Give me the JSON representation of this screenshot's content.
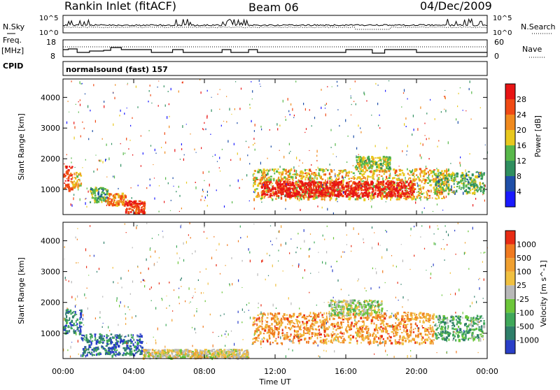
{
  "header": {
    "station": "Rankin Inlet (fitACF)",
    "beam": "Beam 06",
    "date": "04/Dec/2009"
  },
  "noise_panel": {
    "left_label": "N.Sky",
    "right_label": "N.Search",
    "y_ticks_left": [
      "10^5",
      "10^0"
    ],
    "y_ticks_right": [
      "10^5",
      "10^0"
    ]
  },
  "freq_panel": {
    "left_label_1": "Freq.",
    "left_label_2": "[MHz]",
    "y_ticks_left": [
      "18",
      "8"
    ],
    "right_label": "Nave",
    "y_ticks_right": [
      "60",
      "0"
    ]
  },
  "cpid": {
    "label": "CPID",
    "text": "normalsound (fast) 157"
  },
  "chart_data": [
    {
      "type": "heatmap",
      "name": "power",
      "ylabel": "Slant Range [km]",
      "ylim": [
        180,
        4600
      ],
      "y_ticks": [
        1000,
        2000,
        3000,
        4000
      ],
      "colorbar": {
        "label": "Power [dB]",
        "ticks": [
          4,
          8,
          12,
          16,
          20,
          24,
          28
        ],
        "colors": [
          "#1a1aff",
          "#1f4fa8",
          "#2f8f5f",
          "#58b84a",
          "#e8c81e",
          "#f08a1e",
          "#f04a14",
          "#e81414"
        ]
      },
      "regions": [
        {
          "t": [
            0.0,
            0.5
          ],
          "r": [
            1000,
            1800
          ],
          "level": 0.85
        },
        {
          "t": [
            0.5,
            1.0
          ],
          "r": [
            1100,
            1600
          ],
          "level": 0.55
        },
        {
          "t": [
            1.5,
            2.5
          ],
          "r": [
            600,
            1100
          ],
          "level": 0.4
        },
        {
          "t": [
            2.5,
            3.5
          ],
          "r": [
            500,
            900
          ],
          "level": 0.7
        },
        {
          "t": [
            3.5,
            4.6
          ],
          "r": [
            250,
            650
          ],
          "level": 0.85
        },
        {
          "t": [
            10.7,
            21.8
          ],
          "r": [
            700,
            1700
          ],
          "level": 0.6
        },
        {
          "t": [
            11.2,
            19.8
          ],
          "r": [
            800,
            1300
          ],
          "level": 0.95
        },
        {
          "t": [
            16.5,
            18.5
          ],
          "r": [
            1700,
            2100
          ],
          "level": 0.5
        },
        {
          "t": [
            21.0,
            23.8
          ],
          "r": [
            900,
            1600
          ],
          "level": 0.4
        }
      ]
    },
    {
      "type": "heatmap",
      "name": "velocity",
      "xlabel": "Time UT",
      "ylabel": "Slant Range [km]",
      "ylim": [
        180,
        4600
      ],
      "y_ticks": [
        1000,
        2000,
        3000,
        4000
      ],
      "x_ticks": [
        "00:00",
        "04:00",
        "08:00",
        "12:00",
        "16:00",
        "20:00",
        "00:00"
      ],
      "colorbar": {
        "label": "Velocity [m s^-1]",
        "ticks": [
          1000,
          500,
          100,
          25,
          -25,
          -100,
          -500,
          -1000
        ],
        "colors": [
          "#2a3fc8",
          "#2f7f6a",
          "#3fa85a",
          "#6cc63a",
          "#b8b8b8",
          "#f0c040",
          "#f0a030",
          "#f07a20",
          "#e82c14"
        ]
      },
      "regions": [
        {
          "t": [
            0.0,
            1.0
          ],
          "r": [
            1000,
            1800
          ],
          "level": 0.2
        },
        {
          "t": [
            1.0,
            4.5
          ],
          "r": [
            300,
            1000
          ],
          "level": 0.15
        },
        {
          "t": [
            4.5,
            10.5
          ],
          "r": [
            200,
            500
          ],
          "level": 0.55
        },
        {
          "t": [
            10.7,
            21.0
          ],
          "r": [
            700,
            1700
          ],
          "level": 0.75
        },
        {
          "t": [
            15.0,
            18.0
          ],
          "r": [
            1600,
            2100
          ],
          "level": 0.45
        },
        {
          "t": [
            21.0,
            23.8
          ],
          "r": [
            800,
            1600
          ],
          "level": 0.3
        }
      ]
    }
  ]
}
